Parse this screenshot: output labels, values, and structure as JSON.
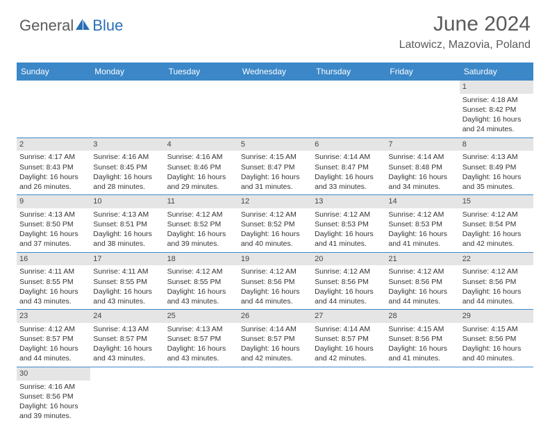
{
  "brand": {
    "part1": "General",
    "part2": "Blue"
  },
  "title": "June 2024",
  "location": "Latowicz, Mazovia, Poland",
  "colors": {
    "header_bg": "#3b87c8",
    "header_text": "#ffffff",
    "daynum_bg": "#e5e5e5",
    "border": "#3b87c8",
    "brand_gray": "#5a5a5a",
    "brand_blue": "#2a6fb5"
  },
  "weekdays": [
    "Sunday",
    "Monday",
    "Tuesday",
    "Wednesday",
    "Thursday",
    "Friday",
    "Saturday"
  ],
  "weeks": [
    [
      null,
      null,
      null,
      null,
      null,
      null,
      {
        "n": "1",
        "sr": "Sunrise: 4:18 AM",
        "ss": "Sunset: 8:42 PM",
        "dl": "Daylight: 16 hours and 24 minutes."
      }
    ],
    [
      {
        "n": "2",
        "sr": "Sunrise: 4:17 AM",
        "ss": "Sunset: 8:43 PM",
        "dl": "Daylight: 16 hours and 26 minutes."
      },
      {
        "n": "3",
        "sr": "Sunrise: 4:16 AM",
        "ss": "Sunset: 8:45 PM",
        "dl": "Daylight: 16 hours and 28 minutes."
      },
      {
        "n": "4",
        "sr": "Sunrise: 4:16 AM",
        "ss": "Sunset: 8:46 PM",
        "dl": "Daylight: 16 hours and 29 minutes."
      },
      {
        "n": "5",
        "sr": "Sunrise: 4:15 AM",
        "ss": "Sunset: 8:47 PM",
        "dl": "Daylight: 16 hours and 31 minutes."
      },
      {
        "n": "6",
        "sr": "Sunrise: 4:14 AM",
        "ss": "Sunset: 8:47 PM",
        "dl": "Daylight: 16 hours and 33 minutes."
      },
      {
        "n": "7",
        "sr": "Sunrise: 4:14 AM",
        "ss": "Sunset: 8:48 PM",
        "dl": "Daylight: 16 hours and 34 minutes."
      },
      {
        "n": "8",
        "sr": "Sunrise: 4:13 AM",
        "ss": "Sunset: 8:49 PM",
        "dl": "Daylight: 16 hours and 35 minutes."
      }
    ],
    [
      {
        "n": "9",
        "sr": "Sunrise: 4:13 AM",
        "ss": "Sunset: 8:50 PM",
        "dl": "Daylight: 16 hours and 37 minutes."
      },
      {
        "n": "10",
        "sr": "Sunrise: 4:13 AM",
        "ss": "Sunset: 8:51 PM",
        "dl": "Daylight: 16 hours and 38 minutes."
      },
      {
        "n": "11",
        "sr": "Sunrise: 4:12 AM",
        "ss": "Sunset: 8:52 PM",
        "dl": "Daylight: 16 hours and 39 minutes."
      },
      {
        "n": "12",
        "sr": "Sunrise: 4:12 AM",
        "ss": "Sunset: 8:52 PM",
        "dl": "Daylight: 16 hours and 40 minutes."
      },
      {
        "n": "13",
        "sr": "Sunrise: 4:12 AM",
        "ss": "Sunset: 8:53 PM",
        "dl": "Daylight: 16 hours and 41 minutes."
      },
      {
        "n": "14",
        "sr": "Sunrise: 4:12 AM",
        "ss": "Sunset: 8:53 PM",
        "dl": "Daylight: 16 hours and 41 minutes."
      },
      {
        "n": "15",
        "sr": "Sunrise: 4:12 AM",
        "ss": "Sunset: 8:54 PM",
        "dl": "Daylight: 16 hours and 42 minutes."
      }
    ],
    [
      {
        "n": "16",
        "sr": "Sunrise: 4:11 AM",
        "ss": "Sunset: 8:55 PM",
        "dl": "Daylight: 16 hours and 43 minutes."
      },
      {
        "n": "17",
        "sr": "Sunrise: 4:11 AM",
        "ss": "Sunset: 8:55 PM",
        "dl": "Daylight: 16 hours and 43 minutes."
      },
      {
        "n": "18",
        "sr": "Sunrise: 4:12 AM",
        "ss": "Sunset: 8:55 PM",
        "dl": "Daylight: 16 hours and 43 minutes."
      },
      {
        "n": "19",
        "sr": "Sunrise: 4:12 AM",
        "ss": "Sunset: 8:56 PM",
        "dl": "Daylight: 16 hours and 44 minutes."
      },
      {
        "n": "20",
        "sr": "Sunrise: 4:12 AM",
        "ss": "Sunset: 8:56 PM",
        "dl": "Daylight: 16 hours and 44 minutes."
      },
      {
        "n": "21",
        "sr": "Sunrise: 4:12 AM",
        "ss": "Sunset: 8:56 PM",
        "dl": "Daylight: 16 hours and 44 minutes."
      },
      {
        "n": "22",
        "sr": "Sunrise: 4:12 AM",
        "ss": "Sunset: 8:56 PM",
        "dl": "Daylight: 16 hours and 44 minutes."
      }
    ],
    [
      {
        "n": "23",
        "sr": "Sunrise: 4:12 AM",
        "ss": "Sunset: 8:57 PM",
        "dl": "Daylight: 16 hours and 44 minutes."
      },
      {
        "n": "24",
        "sr": "Sunrise: 4:13 AM",
        "ss": "Sunset: 8:57 PM",
        "dl": "Daylight: 16 hours and 43 minutes."
      },
      {
        "n": "25",
        "sr": "Sunrise: 4:13 AM",
        "ss": "Sunset: 8:57 PM",
        "dl": "Daylight: 16 hours and 43 minutes."
      },
      {
        "n": "26",
        "sr": "Sunrise: 4:14 AM",
        "ss": "Sunset: 8:57 PM",
        "dl": "Daylight: 16 hours and 42 minutes."
      },
      {
        "n": "27",
        "sr": "Sunrise: 4:14 AM",
        "ss": "Sunset: 8:57 PM",
        "dl": "Daylight: 16 hours and 42 minutes."
      },
      {
        "n": "28",
        "sr": "Sunrise: 4:15 AM",
        "ss": "Sunset: 8:56 PM",
        "dl": "Daylight: 16 hours and 41 minutes."
      },
      {
        "n": "29",
        "sr": "Sunrise: 4:15 AM",
        "ss": "Sunset: 8:56 PM",
        "dl": "Daylight: 16 hours and 40 minutes."
      }
    ],
    [
      {
        "n": "30",
        "sr": "Sunrise: 4:16 AM",
        "ss": "Sunset: 8:56 PM",
        "dl": "Daylight: 16 hours and 39 minutes."
      },
      null,
      null,
      null,
      null,
      null,
      null
    ]
  ]
}
